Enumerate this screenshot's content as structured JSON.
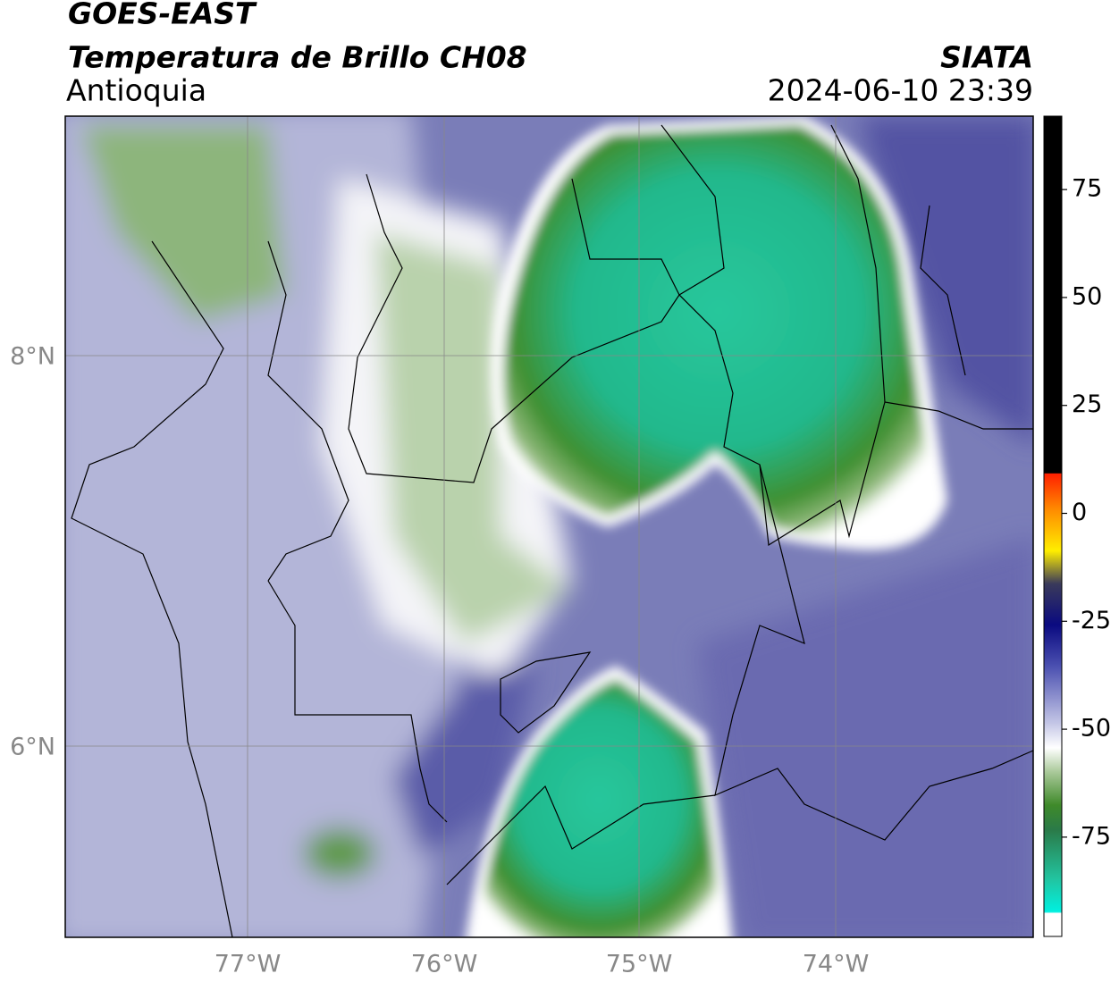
{
  "header": {
    "title": "GOES-EAST",
    "subtitle": "Temperatura de Brillo CH08",
    "region": "Antioquia",
    "source": "SIATA",
    "datetime": "2024-06-10 23:39"
  },
  "map": {
    "lon_labels": [
      "77°W",
      "76°W",
      "75°W",
      "74°W"
    ],
    "lat_labels": [
      "8°N",
      "6°N"
    ]
  },
  "colorbar": {
    "lim": [
      -98,
      92
    ],
    "ticks": [
      75,
      50,
      25,
      0,
      -25,
      -50,
      -75
    ]
  }
}
